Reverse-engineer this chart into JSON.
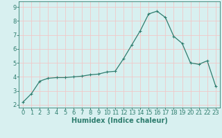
{
  "x": [
    0,
    1,
    2,
    3,
    4,
    5,
    6,
    7,
    8,
    9,
    10,
    11,
    12,
    13,
    14,
    15,
    16,
    17,
    18,
    19,
    20,
    21,
    22,
    23
  ],
  "y": [
    2.2,
    2.8,
    3.7,
    3.9,
    3.95,
    3.95,
    4.0,
    4.05,
    4.15,
    4.2,
    4.35,
    4.4,
    5.3,
    6.3,
    7.3,
    8.5,
    8.7,
    8.25,
    6.9,
    6.4,
    5.0,
    4.9,
    5.15,
    3.35
  ],
  "line_color": "#2e7d6e",
  "marker": "+",
  "marker_size": 3,
  "bg_color": "#d8f0f0",
  "grid_color": "#f0c8c8",
  "axis_color": "#2e7d6e",
  "xlabel": "Humidex (Indice chaleur)",
  "xlim": [
    -0.5,
    23.5
  ],
  "ylim": [
    1.8,
    9.4
  ],
  "yticks": [
    2,
    3,
    4,
    5,
    6,
    7,
    8,
    9
  ],
  "xticks": [
    0,
    1,
    2,
    3,
    4,
    5,
    6,
    7,
    8,
    9,
    10,
    11,
    12,
    13,
    14,
    15,
    16,
    17,
    18,
    19,
    20,
    21,
    22,
    23
  ],
  "label_fontsize": 7,
  "tick_fontsize": 6
}
